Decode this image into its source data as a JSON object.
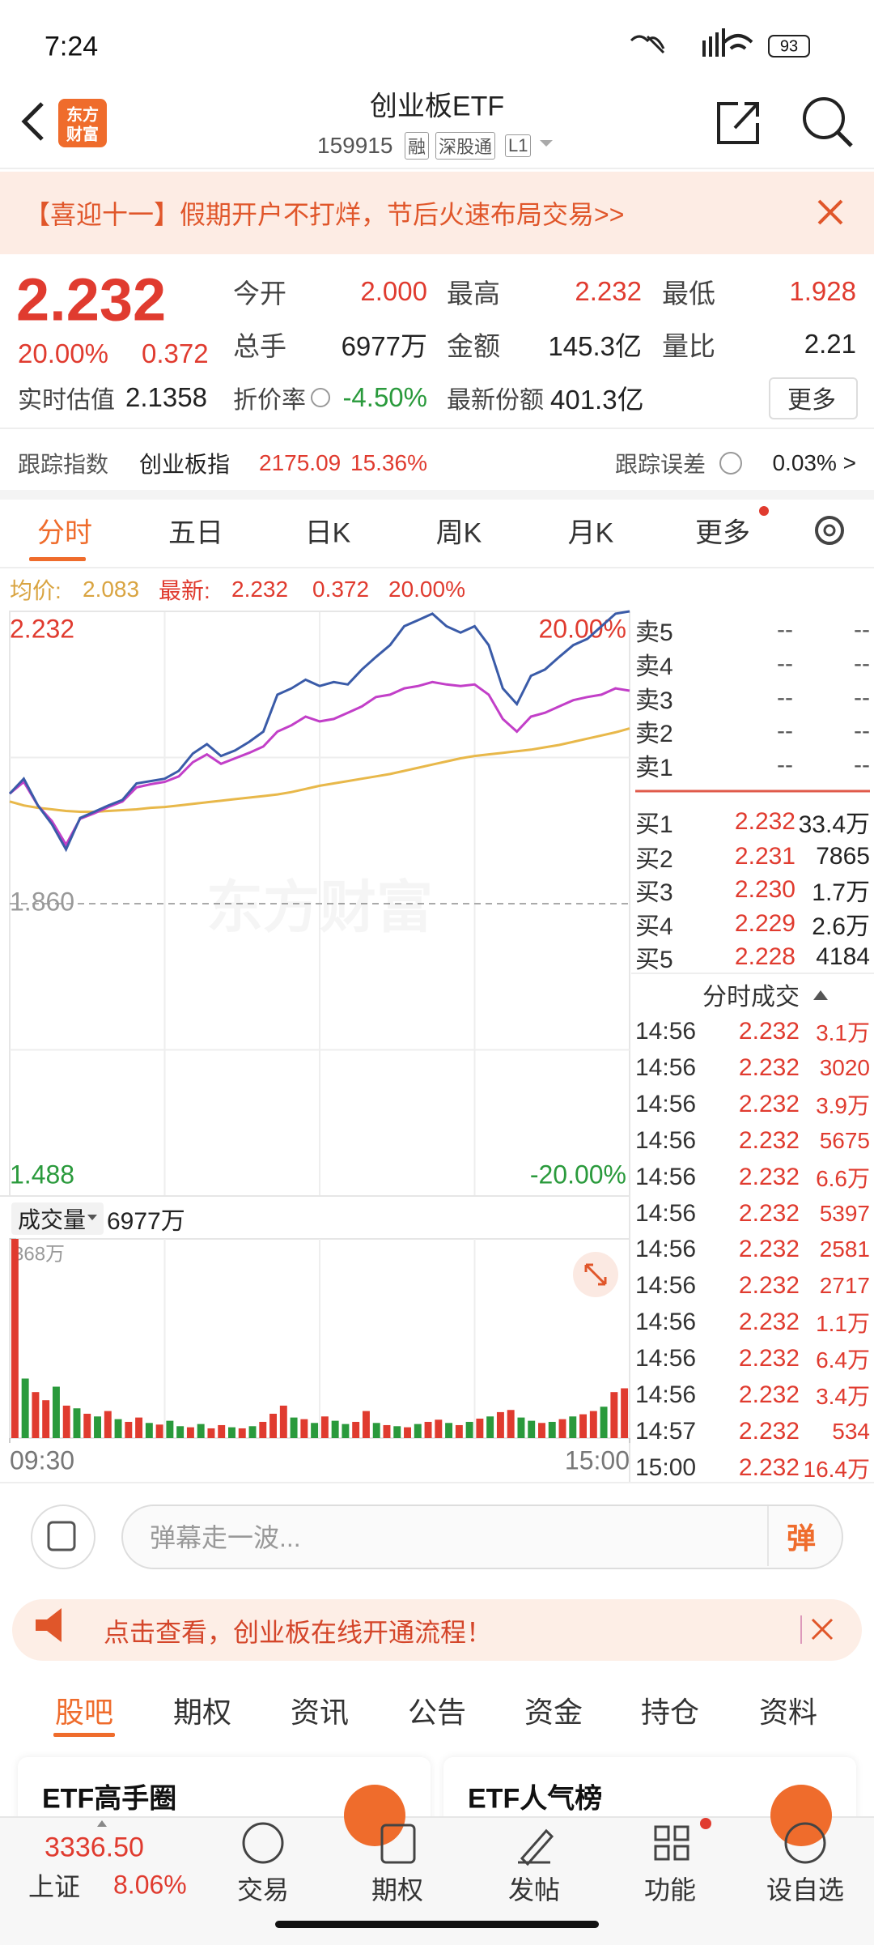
{
  "status_bar": {
    "time": "7:24",
    "battery": "93"
  },
  "header": {
    "logo": [
      "东方",
      "财富"
    ],
    "title": "创业板ETF",
    "code": "159915",
    "tags": [
      "融",
      "深股通",
      "L1"
    ]
  },
  "banner": {
    "text": "【喜迎十一】假期开户不打烊，节后火速布局交易>>"
  },
  "quote": {
    "price": "2.232",
    "change_pct": "20.00%",
    "change": "0.372",
    "fields": [
      {
        "label": "今开",
        "value": "2.000"
      },
      {
        "label": "最高",
        "value": "2.232"
      },
      {
        "label": "最低",
        "value": "1.928"
      },
      {
        "label": "总手",
        "value": "6977万"
      },
      {
        "label": "金额",
        "value": "145.3亿"
      },
      {
        "label": "量比",
        "value": "2.21"
      }
    ],
    "estimate": {
      "label": "实时估值",
      "value": "2.1358"
    },
    "discount": {
      "label": "折价率",
      "value": "-4.50%"
    },
    "shares": {
      "label": "最新份额",
      "value": "401.3亿"
    },
    "more": "更多"
  },
  "tracking": {
    "label": "跟踪指数",
    "index": "创业板指",
    "value": "2175.09",
    "pct": "15.36%",
    "error_label": "跟踪误差",
    "error": "0.03% >"
  },
  "chart_tabs": [
    "分时",
    "五日",
    "日K",
    "周K",
    "月K",
    "更多"
  ],
  "chart_info": {
    "avg_label": "均价:",
    "avg": "2.083",
    "last_label": "最新:",
    "last": "2.232",
    "change": "0.372",
    "pct": "20.00%"
  },
  "watermark": "东方财富",
  "chart_data": [
    {
      "type": "line",
      "ylim": [
        1.488,
        2.232
      ],
      "yticks": [
        2.232,
        {
          "value": 1.86,
          "label": "1.860"
        },
        1.488
      ],
      "y2lim": [
        -20,
        20
      ],
      "y2ticks": [
        {
          "value": 20,
          "label": "20.00%"
        },
        {
          "value": -20,
          "label": "-20.00%"
        }
      ],
      "grid": true,
      "series": [
        {
          "color": "#e8b84a",
          "values": [
            1.99,
            1.985,
            1.982,
            1.98,
            1.978,
            1.977,
            1.977,
            1.978,
            1.979,
            1.98,
            1.982,
            1.983,
            1.985,
            1.987,
            1.989,
            1.991,
            1.993,
            1.995,
            1.997,
            1.999,
            2.002,
            2.006,
            2.01,
            2.013,
            2.016,
            2.019,
            2.022,
            2.025,
            2.029,
            2.033,
            2.037,
            2.041,
            2.045,
            2.048,
            2.05,
            2.052,
            2.054,
            2.056,
            2.059,
            2.062,
            2.066,
            2.07,
            2.074,
            2.078,
            2.083
          ]
        },
        {
          "color": "#c23fc8",
          "values": [
            2.0,
            2.015,
            1.985,
            1.965,
            1.935,
            1.968,
            1.975,
            1.983,
            1.99,
            2.008,
            2.012,
            2.015,
            2.022,
            2.04,
            2.05,
            2.038,
            2.045,
            2.052,
            2.06,
            2.079,
            2.087,
            2.098,
            2.092,
            2.095,
            2.103,
            2.111,
            2.123,
            2.126,
            2.134,
            2.137,
            2.142,
            2.139,
            2.137,
            2.139,
            2.126,
            2.095,
            2.079,
            2.098,
            2.103,
            2.111,
            2.119,
            2.123,
            2.126,
            2.134,
            2.131
          ]
        },
        {
          "color": "#3a5ba8",
          "values": [
            2.0,
            2.019,
            1.985,
            1.961,
            1.929,
            1.969,
            1.977,
            1.985,
            1.992,
            2.013,
            2.016,
            2.019,
            2.029,
            2.051,
            2.063,
            2.048,
            2.055,
            2.066,
            2.079,
            2.126,
            2.134,
            2.145,
            2.137,
            2.142,
            2.139,
            2.158,
            2.174,
            2.189,
            2.213,
            2.221,
            2.229,
            2.213,
            2.205,
            2.213,
            2.189,
            2.134,
            2.114,
            2.15,
            2.158,
            2.174,
            2.189,
            2.197,
            2.213,
            2.229,
            2.232
          ]
        }
      ]
    },
    {
      "type": "bar",
      "ylim": [
        0,
        368
      ],
      "yticks": [
        {
          "value": 368,
          "label": "368万"
        }
      ],
      "xlim": [
        0,
        240
      ],
      "xticks": [
        {
          "value": 0,
          "label": "09:30"
        },
        {
          "value": 240,
          "label": "15:00"
        }
      ],
      "values": [
        368,
        110,
        85,
        70,
        95,
        60,
        55,
        45,
        40,
        50,
        35,
        30,
        38,
        28,
        25,
        32,
        22,
        20,
        26,
        18,
        24,
        20,
        18,
        22,
        30,
        45,
        60,
        38,
        35,
        28,
        40,
        32,
        26,
        30,
        50,
        28,
        24,
        22,
        20,
        26,
        30,
        34,
        28,
        24,
        30,
        36,
        40,
        48,
        52,
        38,
        32,
        28,
        30,
        35,
        40,
        44,
        50,
        58,
        85,
        92
      ],
      "colors": [
        "#e03b2f",
        "#2a9a3c",
        "#e03b2f",
        "#e03b2f",
        "#2a9a3c",
        "#e03b2f",
        "#2a9a3c",
        "#e03b2f",
        "#2a9a3c",
        "#e03b2f",
        "#2a9a3c",
        "#e03b2f",
        "#e03b2f",
        "#2a9a3c",
        "#e03b2f",
        "#2a9a3c",
        "#2a9a3c",
        "#e03b2f",
        "#2a9a3c",
        "#e03b2f",
        "#e03b2f",
        "#2a9a3c",
        "#e03b2f",
        "#2a9a3c",
        "#e03b2f",
        "#e03b2f",
        "#e03b2f",
        "#2a9a3c",
        "#e03b2f",
        "#2a9a3c",
        "#e03b2f",
        "#2a9a3c",
        "#2a9a3c",
        "#e03b2f",
        "#e03b2f",
        "#2a9a3c",
        "#e03b2f",
        "#2a9a3c",
        "#e03b2f",
        "#2a9a3c",
        "#e03b2f",
        "#e03b2f",
        "#2a9a3c",
        "#e03b2f",
        "#2a9a3c",
        "#e03b2f",
        "#2a9a3c",
        "#e03b2f",
        "#e03b2f",
        "#2a9a3c",
        "#2a9a3c",
        "#e03b2f",
        "#2a9a3c",
        "#e03b2f",
        "#2a9a3c",
        "#e03b2f",
        "#e03b2f",
        "#2a9a3c",
        "#e03b2f",
        "#e03b2f"
      ]
    }
  ],
  "volume_header": {
    "label": "成交量",
    "value": "6977万"
  },
  "order_book": {
    "asks": [
      {
        "label": "卖5",
        "price": "--",
        "volume": "--"
      },
      {
        "label": "卖4",
        "price": "--",
        "volume": "--"
      },
      {
        "label": "卖3",
        "price": "--",
        "volume": "--"
      },
      {
        "label": "卖2",
        "price": "--",
        "volume": "--"
      },
      {
        "label": "卖1",
        "price": "--",
        "volume": "--"
      }
    ],
    "bids": [
      {
        "label": "买1",
        "price": "2.232",
        "volume": "33.4万"
      },
      {
        "label": "买2",
        "price": "2.231",
        "volume": "7865"
      },
      {
        "label": "买3",
        "price": "2.230",
        "volume": "1.7万"
      },
      {
        "label": "买4",
        "price": "2.229",
        "volume": "2.6万"
      },
      {
        "label": "买5",
        "price": "2.228",
        "volume": "4184"
      }
    ]
  },
  "trades": {
    "title": "分时成交",
    "rows": [
      [
        "14:56",
        "2.232",
        "3.1万"
      ],
      [
        "14:56",
        "2.232",
        "3020"
      ],
      [
        "14:56",
        "2.232",
        "3.9万"
      ],
      [
        "14:56",
        "2.232",
        "5675"
      ],
      [
        "14:56",
        "2.232",
        "6.6万"
      ],
      [
        "14:56",
        "2.232",
        "5397"
      ],
      [
        "14:56",
        "2.232",
        "2581"
      ],
      [
        "14:56",
        "2.232",
        "2717"
      ],
      [
        "14:56",
        "2.232",
        "1.1万"
      ],
      [
        "14:56",
        "2.232",
        "6.4万"
      ],
      [
        "14:56",
        "2.232",
        "3.4万"
      ],
      [
        "14:57",
        "2.232",
        "534"
      ],
      [
        "15:00",
        "2.232",
        "16.4万"
      ]
    ]
  },
  "comment": {
    "placeholder": "弹幕走一波...",
    "button": "弹"
  },
  "notice": {
    "text": "点击查看，创业板在线开通流程！"
  },
  "content_tabs": [
    "股吧",
    "期权",
    "资讯",
    "公告",
    "资金",
    "持仓",
    "资料"
  ],
  "cards": [
    "ETF高手圈",
    "ETF人气榜"
  ],
  "bottom_nav": {
    "index_value": "3336.50",
    "index_name": "上证",
    "index_pct": "8.06%",
    "items": [
      "交易",
      "期权",
      "发帖",
      "功能",
      "设自选"
    ]
  }
}
